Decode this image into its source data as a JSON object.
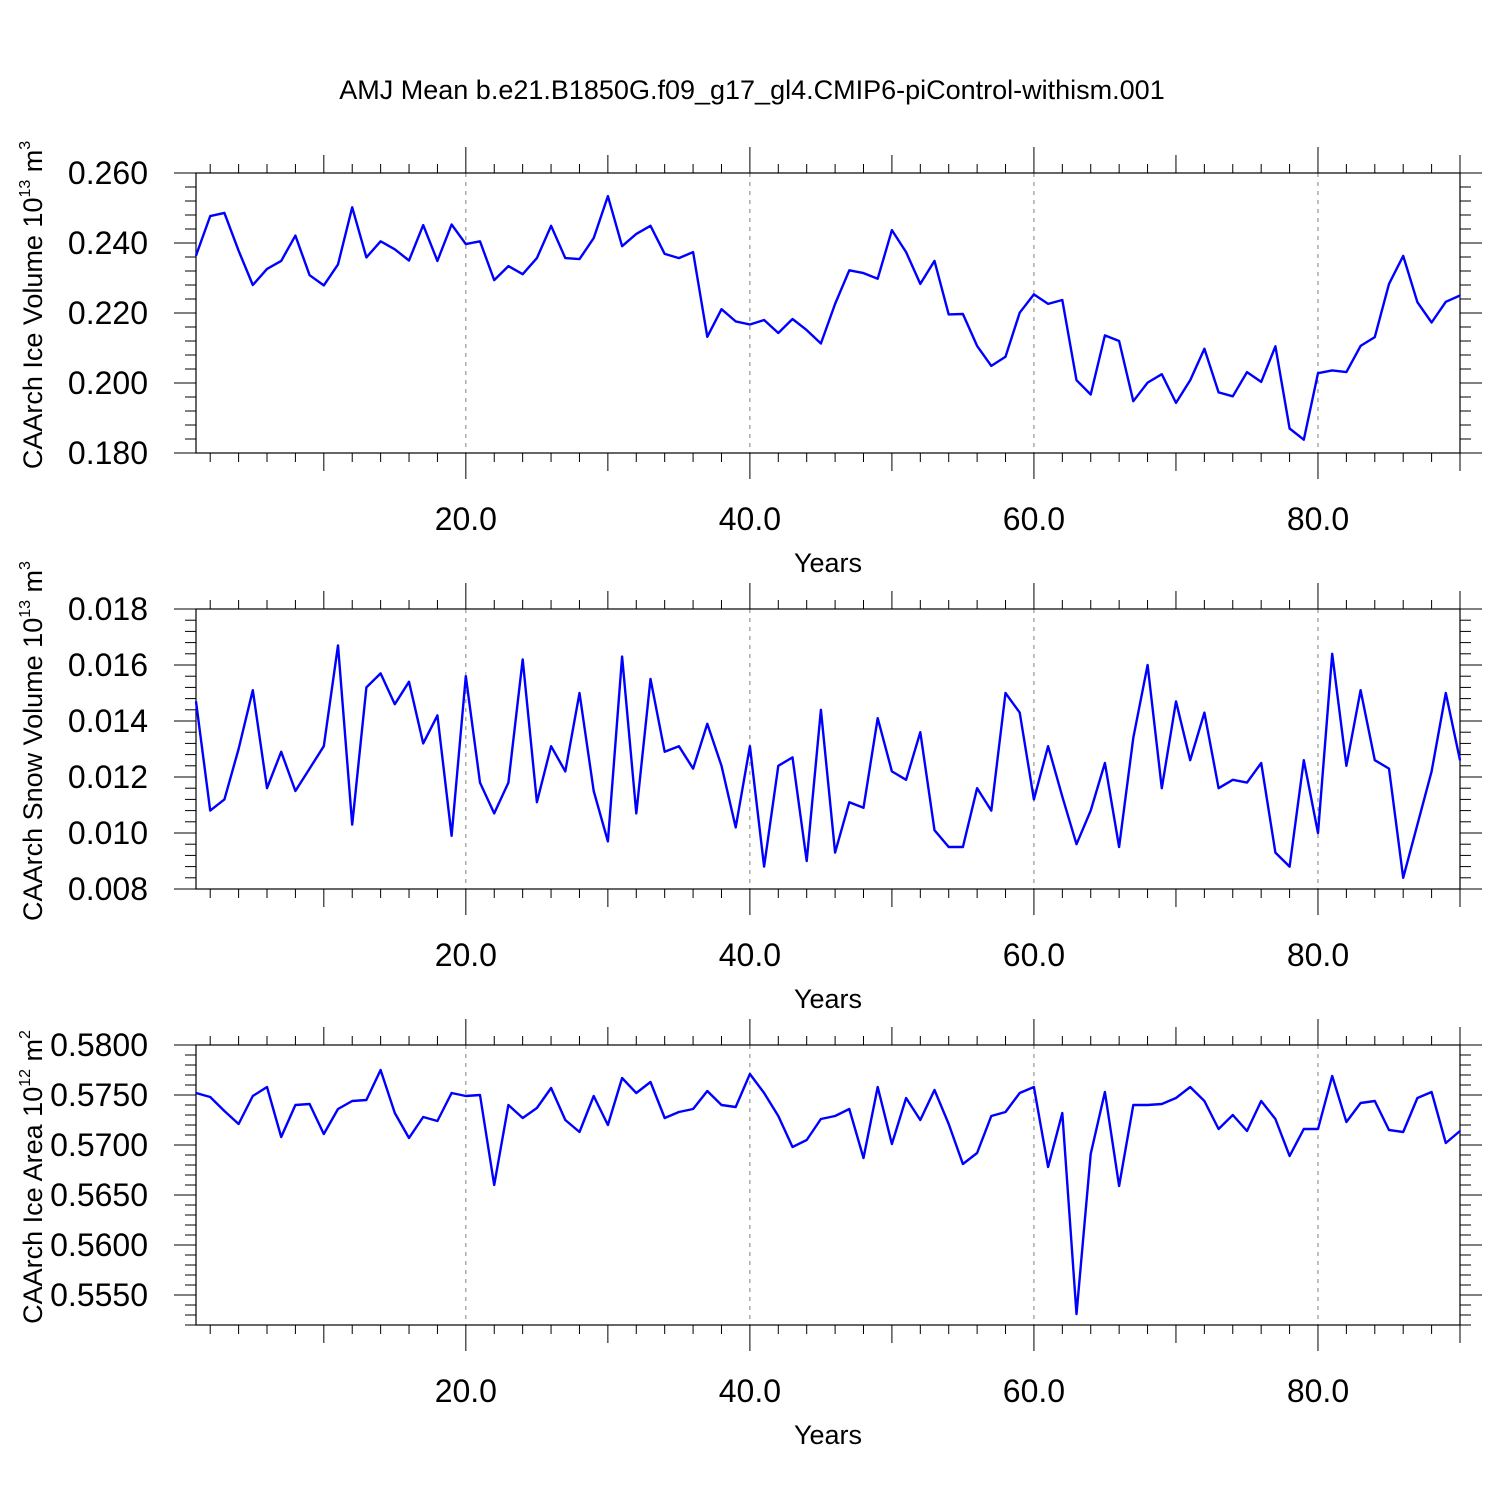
{
  "title": "AMJ Mean b.e21.B1850G.f09_g17_gl4.CMIP6-piControl-withism.001",
  "colors": {
    "line": "#0000ff",
    "axis": "#000000",
    "grid": "#808080"
  },
  "chart_data": [
    {
      "type": "line",
      "xlabel": "Years",
      "ylabel": {
        "main": "CAArch Ice Volume 10",
        "exp": "13",
        "unit": " m",
        "unit_exp": "3"
      },
      "xlim": [
        1,
        90
      ],
      "ylim": [
        0.18,
        0.26
      ],
      "xticks": [
        20,
        40,
        60,
        80
      ],
      "xtick_labels": [
        "20.0",
        "40.0",
        "60.0",
        "80.0"
      ],
      "yticks": [
        0.18,
        0.2,
        0.22,
        0.24,
        0.26
      ],
      "ytick_labels": [
        "0.180",
        "0.200",
        "0.220",
        "0.240",
        "0.260"
      ],
      "grid": "vertical dashed at major x ticks",
      "x_start": 1,
      "values": [
        0.2364,
        0.2477,
        0.2486,
        0.2378,
        0.228,
        0.2326,
        0.2349,
        0.2421,
        0.2308,
        0.2279,
        0.2339,
        0.2502,
        0.2359,
        0.2405,
        0.2382,
        0.235,
        0.2451,
        0.2349,
        0.2453,
        0.2397,
        0.2405,
        0.2294,
        0.2334,
        0.2311,
        0.2357,
        0.2449,
        0.2357,
        0.2354,
        0.2414,
        0.2534,
        0.2391,
        0.2426,
        0.2449,
        0.2369,
        0.2357,
        0.2374,
        0.2132,
        0.2211,
        0.2176,
        0.2167,
        0.218,
        0.2143,
        0.2183,
        0.2151,
        0.2113,
        0.2226,
        0.2322,
        0.2314,
        0.2298,
        0.2437,
        0.2374,
        0.2283,
        0.2349,
        0.2196,
        0.2197,
        0.2106,
        0.2049,
        0.2075,
        0.2201,
        0.2253,
        0.2226,
        0.2237,
        0.2008,
        0.1967,
        0.2136,
        0.212,
        0.1948,
        0.2001,
        0.2025,
        0.1943,
        0.2008,
        0.2098,
        0.1973,
        0.1962,
        0.2031,
        0.2003,
        0.2105,
        0.187,
        0.1838,
        0.2028,
        0.2036,
        0.2031,
        0.2106,
        0.2131,
        0.2283,
        0.2363,
        0.2231,
        0.2173,
        0.2232,
        0.225
      ]
    },
    {
      "type": "line",
      "xlabel": "Years",
      "ylabel": {
        "main": "CAArch Snow Volume 10",
        "exp": "13",
        "unit": " m",
        "unit_exp": "3"
      },
      "xlim": [
        1,
        90
      ],
      "ylim": [
        0.008,
        0.018
      ],
      "xticks": [
        20,
        40,
        60,
        80
      ],
      "xtick_labels": [
        "20.0",
        "40.0",
        "60.0",
        "80.0"
      ],
      "yticks": [
        0.008,
        0.01,
        0.012,
        0.014,
        0.016,
        0.018
      ],
      "ytick_labels": [
        "0.008",
        "0.010",
        "0.012",
        "0.014",
        "0.016",
        "0.018"
      ],
      "grid": "vertical dashed at major x ticks",
      "x_start": 1,
      "values": [
        0.0147,
        0.0108,
        0.0112,
        0.013,
        0.0151,
        0.0116,
        0.0129,
        0.0115,
        0.0123,
        0.0131,
        0.0167,
        0.0103,
        0.0152,
        0.0157,
        0.0146,
        0.0154,
        0.0132,
        0.0142,
        0.0099,
        0.0156,
        0.0118,
        0.0107,
        0.0118,
        0.0162,
        0.0111,
        0.0131,
        0.0122,
        0.015,
        0.0115,
        0.0097,
        0.0163,
        0.0107,
        0.0155,
        0.0129,
        0.0131,
        0.0123,
        0.0139,
        0.0124,
        0.0102,
        0.0131,
        0.0088,
        0.0124,
        0.0127,
        0.009,
        0.0144,
        0.0093,
        0.0111,
        0.0109,
        0.0141,
        0.0122,
        0.0119,
        0.0136,
        0.0101,
        0.0095,
        0.0095,
        0.0116,
        0.0108,
        0.015,
        0.0143,
        0.0112,
        0.0131,
        0.0113,
        0.0096,
        0.0108,
        0.0125,
        0.0095,
        0.0134,
        0.016,
        0.0116,
        0.0147,
        0.0126,
        0.0143,
        0.0116,
        0.0119,
        0.0118,
        0.0125,
        0.0093,
        0.0088,
        0.0126,
        0.01,
        0.0164,
        0.0124,
        0.0151,
        0.0126,
        0.0123,
        0.0084,
        0.0103,
        0.0122,
        0.015,
        0.0126
      ]
    },
    {
      "type": "line",
      "xlabel": "Years",
      "ylabel": {
        "main": "CAArch Ice Area 10",
        "exp": "12",
        "unit": " m",
        "unit_exp": "2"
      },
      "xlim": [
        1,
        90
      ],
      "ylim": [
        0.552,
        0.58
      ],
      "xticks": [
        20,
        40,
        60,
        80
      ],
      "xtick_labels": [
        "20.0",
        "40.0",
        "60.0",
        "80.0"
      ],
      "yticks": [
        0.555,
        0.56,
        0.565,
        0.57,
        0.575,
        0.58
      ],
      "ytick_labels": [
        "0.5550",
        "0.5600",
        "0.5650",
        "0.5700",
        "0.5750",
        "0.5800"
      ],
      "grid": "vertical dashed at major x ticks",
      "x_start": 1,
      "values": [
        0.5752,
        0.5748,
        0.5734,
        0.5721,
        0.5749,
        0.5758,
        0.5708,
        0.574,
        0.5741,
        0.5711,
        0.5736,
        0.5744,
        0.5745,
        0.5775,
        0.5732,
        0.5707,
        0.5728,
        0.5724,
        0.5752,
        0.5749,
        0.575,
        0.566,
        0.574,
        0.5727,
        0.5737,
        0.5757,
        0.5725,
        0.5713,
        0.5749,
        0.572,
        0.5767,
        0.5752,
        0.5763,
        0.5727,
        0.5733,
        0.5736,
        0.5754,
        0.574,
        0.5738,
        0.5771,
        0.5752,
        0.5729,
        0.5698,
        0.5705,
        0.5726,
        0.5729,
        0.5736,
        0.5687,
        0.5758,
        0.5701,
        0.5747,
        0.5725,
        0.5755,
        0.5721,
        0.5681,
        0.5692,
        0.5729,
        0.5733,
        0.5752,
        0.5758,
        0.5678,
        0.5732,
        0.5531,
        0.5691,
        0.5753,
        0.5659,
        0.574,
        0.574,
        0.5741,
        0.5747,
        0.5758,
        0.5744,
        0.5716,
        0.573,
        0.5714,
        0.5744,
        0.5726,
        0.5689,
        0.5716,
        0.5716,
        0.5769,
        0.5723,
        0.5742,
        0.5744,
        0.5715,
        0.5713,
        0.5747,
        0.5753,
        0.5702,
        0.5714
      ]
    }
  ]
}
